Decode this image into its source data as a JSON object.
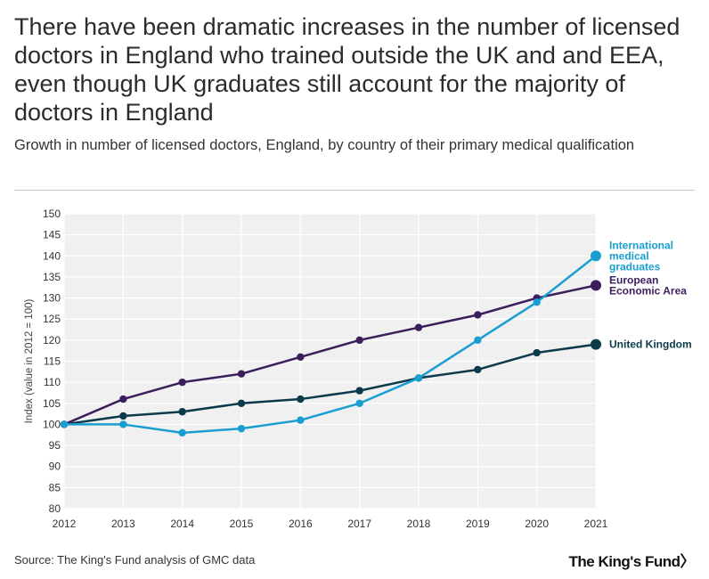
{
  "title": "There have been dramatic increases in the number of licensed doctors in England who trained outside the UK and and EEA, even though UK graduates still account for the majority of doctors in England",
  "subtitle": "Growth in number of licensed doctors, England, by country of their primary medical qualification",
  "source": "Source: The King's Fund analysis of GMC data",
  "logo": "The King's Fund",
  "logo_mark": "〉",
  "chart_data": {
    "type": "line",
    "ylabel": "Index (value in 2012 = 100)",
    "xlabel": "",
    "x": [
      2012,
      2013,
      2014,
      2015,
      2016,
      2017,
      2018,
      2019,
      2020,
      2021
    ],
    "ylim": [
      80,
      150
    ],
    "yticks": [
      80,
      85,
      90,
      95,
      100,
      105,
      110,
      115,
      120,
      125,
      130,
      135,
      140,
      145,
      150
    ],
    "grid": true,
    "series": [
      {
        "name": "International medical graduates",
        "label_lines": [
          "International",
          "medical",
          "graduates"
        ],
        "color": "#1a9ed1",
        "values": [
          100,
          100,
          98,
          99,
          101,
          105,
          111,
          120,
          129,
          140
        ]
      },
      {
        "name": "European Economic Area",
        "label_lines": [
          "European",
          "Economic Area"
        ],
        "color": "#3b1f5c",
        "values": [
          100,
          106,
          110,
          112,
          116,
          120,
          123,
          126,
          130,
          133
        ]
      },
      {
        "name": "United Kingdom",
        "label_lines": [
          "United Kingdom"
        ],
        "color": "#0b3b4a",
        "values": [
          100,
          102,
          103,
          105,
          106,
          108,
          111,
          113,
          117,
          119
        ]
      }
    ]
  }
}
